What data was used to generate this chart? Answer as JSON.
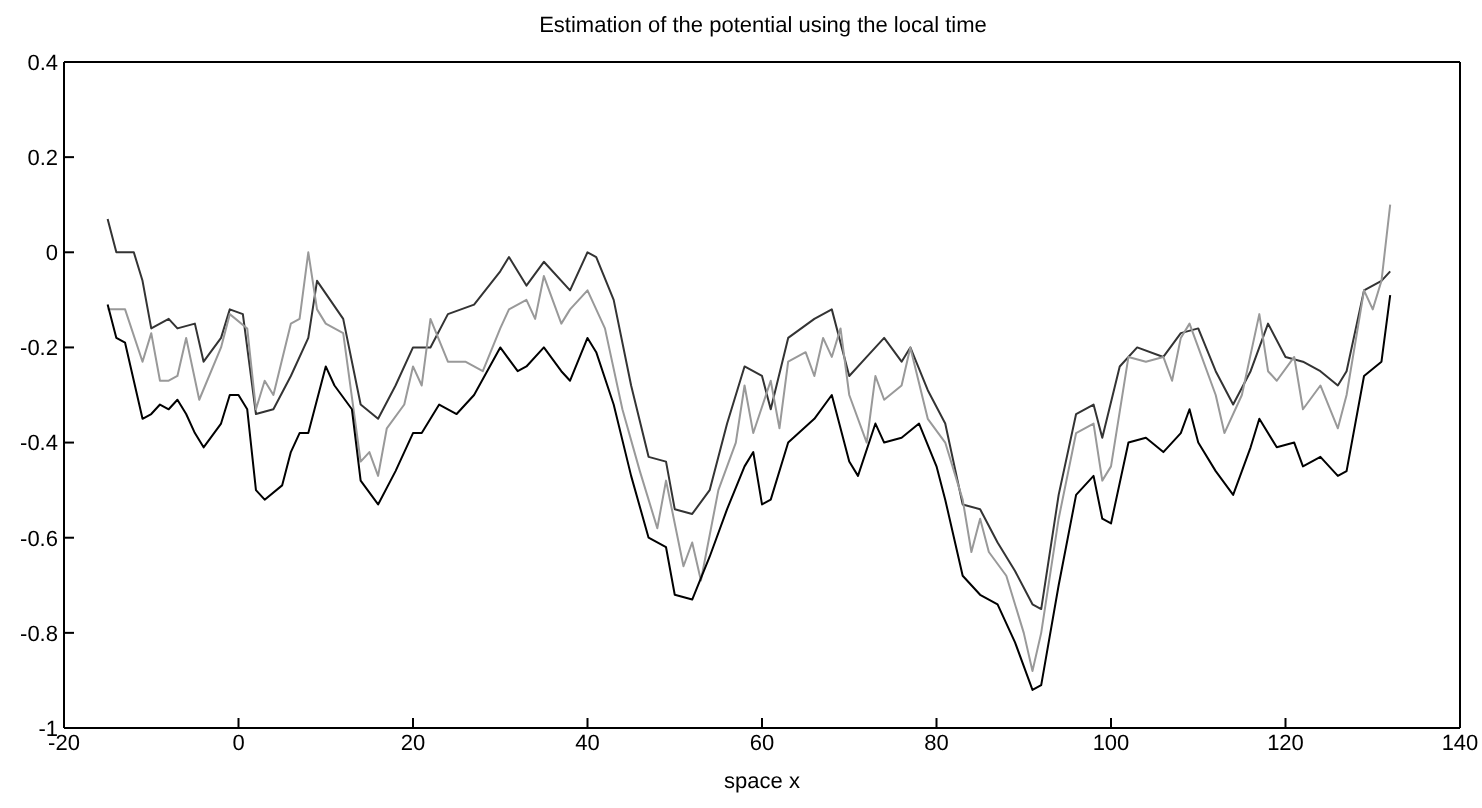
{
  "chart_data": {
    "type": "line",
    "title": "Estimation of the potential using the local time",
    "xlabel": "space x",
    "xlim": [
      -20,
      140
    ],
    "xticks": [
      -20,
      0,
      20,
      40,
      60,
      80,
      100,
      120,
      140
    ],
    "ylim": [
      -1,
      0.4
    ],
    "yticks": [
      -1,
      -0.8,
      -0.6,
      -0.4,
      -0.2,
      0,
      0.2,
      0.4
    ],
    "marker": "none",
    "line_style": "solid",
    "series": [
      {
        "color": "#333333",
        "x": [
          -15,
          -14,
          -12,
          -11,
          -10,
          -8,
          -7,
          -5,
          -4,
          -2,
          -1,
          0.5,
          2,
          4,
          6,
          8,
          9,
          12,
          14,
          16,
          18,
          20,
          22,
          24,
          27,
          30,
          31,
          33,
          35,
          38,
          40,
          41,
          43,
          45,
          47,
          49,
          50,
          52,
          54,
          56,
          58,
          60,
          61,
          63,
          66,
          68,
          70,
          72,
          74,
          76,
          77,
          79,
          81,
          83,
          85,
          87,
          89,
          91,
          92,
          94,
          96,
          98,
          99,
          101,
          103,
          106,
          108,
          110,
          112,
          114,
          116,
          118,
          120,
          122,
          124,
          126,
          127,
          129,
          131,
          132
        ],
        "values": [
          0.07,
          0,
          0,
          -0.06,
          -0.16,
          -0.14,
          -0.16,
          -0.15,
          -0.23,
          -0.18,
          -0.12,
          -0.13,
          -0.34,
          -0.33,
          -0.26,
          -0.18,
          -0.06,
          -0.14,
          -0.32,
          -0.35,
          -0.28,
          -0.2,
          -0.2,
          -0.13,
          -0.11,
          -0.04,
          -0.01,
          -0.07,
          -0.02,
          -0.08,
          0,
          -0.01,
          -0.1,
          -0.28,
          -0.43,
          -0.44,
          -0.54,
          -0.55,
          -0.5,
          -0.36,
          -0.24,
          -0.26,
          -0.33,
          -0.18,
          -0.14,
          -0.12,
          -0.26,
          -0.22,
          -0.18,
          -0.23,
          -0.2,
          -0.29,
          -0.36,
          -0.53,
          -0.54,
          -0.61,
          -0.67,
          -0.74,
          -0.75,
          -0.51,
          -0.34,
          -0.32,
          -0.39,
          -0.24,
          -0.2,
          -0.22,
          -0.17,
          -0.16,
          -0.25,
          -0.32,
          -0.25,
          -0.15,
          -0.22,
          -0.23,
          -0.25,
          -0.28,
          -0.25,
          -0.08,
          -0.06,
          -0.04
        ]
      },
      {
        "color": "#999999",
        "x": [
          -15,
          -13,
          -11,
          -10,
          -9,
          -8,
          -7,
          -6,
          -4.5,
          -2,
          -1,
          1,
          2,
          3,
          4,
          6,
          7,
          8,
          9,
          10,
          12,
          14,
          15,
          16,
          17,
          19,
          20,
          21,
          22,
          24,
          26,
          28,
          30,
          31,
          33,
          34,
          35,
          37,
          38,
          40,
          42,
          44,
          46,
          48,
          49,
          51,
          52,
          53,
          55,
          57,
          58,
          59,
          61,
          62,
          63,
          65,
          66,
          67,
          68,
          69,
          70,
          72,
          73,
          74,
          76,
          77,
          79,
          81,
          83,
          84,
          85,
          86,
          88,
          90,
          91,
          92,
          94,
          96,
          98,
          99,
          100,
          102,
          104,
          106,
          107,
          108,
          109,
          110,
          112,
          113,
          115,
          117,
          118,
          119,
          121,
          122,
          124,
          126,
          127,
          129,
          130,
          131,
          132
        ],
        "values": [
          -0.12,
          -0.12,
          -0.23,
          -0.17,
          -0.27,
          -0.27,
          -0.26,
          -0.18,
          -0.31,
          -0.2,
          -0.13,
          -0.16,
          -0.33,
          -0.27,
          -0.3,
          -0.15,
          -0.14,
          0,
          -0.12,
          -0.15,
          -0.17,
          -0.44,
          -0.42,
          -0.47,
          -0.37,
          -0.32,
          -0.24,
          -0.28,
          -0.14,
          -0.23,
          -0.23,
          -0.25,
          -0.16,
          -0.12,
          -0.1,
          -0.14,
          -0.05,
          -0.15,
          -0.12,
          -0.08,
          -0.16,
          -0.33,
          -0.46,
          -0.58,
          -0.48,
          -0.66,
          -0.61,
          -0.69,
          -0.5,
          -0.4,
          -0.28,
          -0.38,
          -0.27,
          -0.37,
          -0.23,
          -0.21,
          -0.26,
          -0.18,
          -0.22,
          -0.16,
          -0.3,
          -0.4,
          -0.26,
          -0.31,
          -0.28,
          -0.2,
          -0.35,
          -0.4,
          -0.52,
          -0.63,
          -0.56,
          -0.63,
          -0.68,
          -0.8,
          -0.88,
          -0.8,
          -0.56,
          -0.38,
          -0.36,
          -0.48,
          -0.45,
          -0.22,
          -0.23,
          -0.22,
          -0.27,
          -0.18,
          -0.15,
          -0.2,
          -0.3,
          -0.38,
          -0.3,
          -0.13,
          -0.25,
          -0.27,
          -0.22,
          -0.33,
          -0.28,
          -0.37,
          -0.3,
          -0.08,
          -0.12,
          -0.06,
          0.1
        ]
      },
      {
        "color": "#000000",
        "x": [
          -15,
          -14,
          -13,
          -11,
          -10,
          -9,
          -8,
          -7,
          -6,
          -5,
          -4,
          -2,
          -1,
          0,
          1,
          2,
          3,
          5,
          6,
          7,
          8,
          10,
          11,
          13,
          14,
          16,
          18,
          20,
          21,
          23,
          25,
          27,
          30,
          32,
          33,
          35,
          37,
          38,
          40,
          41,
          43,
          45,
          47,
          49,
          50,
          52,
          54,
          56,
          58,
          59,
          60,
          61,
          63,
          66,
          68,
          70,
          71,
          73,
          74,
          76,
          78,
          80,
          81,
          83,
          85,
          87,
          89,
          91,
          92,
          94,
          96,
          98,
          99,
          100,
          102,
          104,
          106,
          108,
          109,
          110,
          112,
          114,
          116,
          117,
          119,
          121,
          122,
          124,
          126,
          127,
          129,
          131,
          132
        ],
        "values": [
          -0.11,
          -0.18,
          -0.19,
          -0.35,
          -0.34,
          -0.32,
          -0.33,
          -0.31,
          -0.34,
          -0.38,
          -0.41,
          -0.36,
          -0.3,
          -0.3,
          -0.33,
          -0.5,
          -0.52,
          -0.49,
          -0.42,
          -0.38,
          -0.38,
          -0.24,
          -0.28,
          -0.33,
          -0.48,
          -0.53,
          -0.46,
          -0.38,
          -0.38,
          -0.32,
          -0.34,
          -0.3,
          -0.2,
          -0.25,
          -0.24,
          -0.2,
          -0.25,
          -0.27,
          -0.18,
          -0.21,
          -0.32,
          -0.47,
          -0.6,
          -0.62,
          -0.72,
          -0.73,
          -0.64,
          -0.54,
          -0.45,
          -0.42,
          -0.53,
          -0.52,
          -0.4,
          -0.35,
          -0.3,
          -0.44,
          -0.47,
          -0.36,
          -0.4,
          -0.39,
          -0.36,
          -0.45,
          -0.52,
          -0.68,
          -0.72,
          -0.74,
          -0.82,
          -0.92,
          -0.91,
          -0.7,
          -0.51,
          -0.47,
          -0.56,
          -0.57,
          -0.4,
          -0.39,
          -0.42,
          -0.38,
          -0.33,
          -0.4,
          -0.46,
          -0.51,
          -0.41,
          -0.35,
          -0.41,
          -0.4,
          -0.45,
          -0.43,
          -0.47,
          -0.46,
          -0.26,
          -0.23,
          -0.09
        ]
      }
    ]
  }
}
